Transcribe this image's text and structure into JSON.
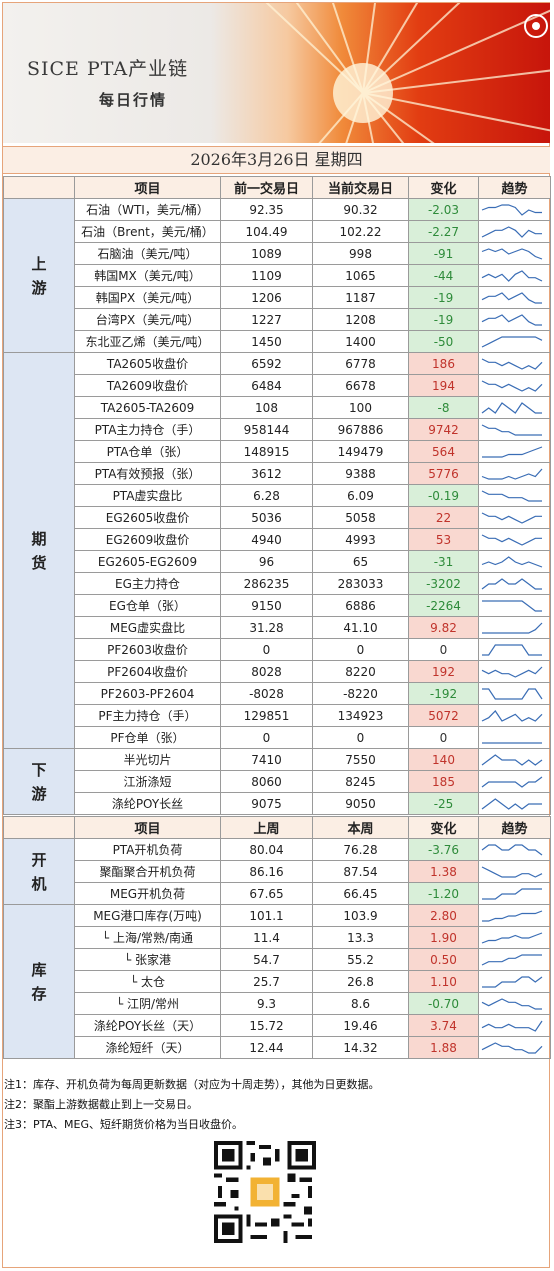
{
  "banner": {
    "title_line1": "SICE  PTA产业链",
    "title_line2": "每日行情"
  },
  "date": "2026年3月26日  星期四",
  "header1": {
    "item": "项目",
    "prev": "前一交易日",
    "curr": "当前交易日",
    "change": "变化",
    "trend": "趋势"
  },
  "header2": {
    "item": "项目",
    "prev": "上周",
    "curr": "本周",
    "change": "变化",
    "trend": "趋势"
  },
  "colors": {
    "up_bg": "#f9d8d0",
    "up_text": "#c0332b",
    "down_bg": "#d9efd9",
    "down_text": "#2e8b3a",
    "section_bg": "#dde6f3"
  },
  "sections": [
    {
      "name": "上\n游",
      "rows": [
        {
          "item": "石油（WTI，美元/桶）",
          "prev": "92.35",
          "curr": "90.32",
          "change": "-2.03",
          "dir": "down",
          "trend": [
            4,
            5,
            5,
            6,
            6,
            5,
            2,
            4,
            3,
            3
          ]
        },
        {
          "item": "石油（Brent，美元/桶）",
          "prev": "104.49",
          "curr": "102.22",
          "change": "-2.27",
          "dir": "down",
          "trend": [
            3,
            4,
            5,
            5,
            6,
            5,
            3,
            5,
            4,
            4
          ]
        },
        {
          "item": "石脑油（美元/吨）",
          "prev": "1089",
          "curr": "998",
          "change": "-91",
          "dir": "down",
          "trend": [
            5,
            6,
            5,
            6,
            4,
            5,
            6,
            5,
            3,
            2
          ]
        },
        {
          "item": "韩国MX（美元/吨）",
          "prev": "1109",
          "curr": "1065",
          "change": "-44",
          "dir": "down",
          "trend": [
            4,
            5,
            4,
            5,
            3,
            5,
            6,
            4,
            4,
            3
          ]
        },
        {
          "item": "韩国PX（美元/吨）",
          "prev": "1206",
          "curr": "1187",
          "change": "-19",
          "dir": "down",
          "trend": [
            4,
            5,
            5,
            6,
            4,
            5,
            6,
            4,
            3,
            3
          ]
        },
        {
          "item": "台湾PX（美元/吨）",
          "prev": "1227",
          "curr": "1208",
          "change": "-19",
          "dir": "down",
          "trend": [
            4,
            5,
            5,
            6,
            4,
            5,
            6,
            4,
            3,
            3
          ]
        },
        {
          "item": "东北亚乙烯（美元/吨）",
          "prev": "1450",
          "curr": "1400",
          "change": "-50",
          "dir": "down",
          "trend": [
            2,
            3,
            4,
            5,
            5,
            5,
            5,
            5,
            5,
            4
          ]
        }
      ]
    },
    {
      "name": "期\n货",
      "rows": [
        {
          "item": "TA2605收盘价",
          "prev": "6592",
          "curr": "6778",
          "change": "186",
          "dir": "up",
          "trend": [
            5,
            4,
            4,
            3,
            4,
            3,
            2,
            3,
            2,
            4
          ]
        },
        {
          "item": "TA2609收盘价",
          "prev": "6484",
          "curr": "6678",
          "change": "194",
          "dir": "up",
          "trend": [
            5,
            4,
            4,
            3,
            4,
            3,
            2,
            3,
            2,
            4
          ]
        },
        {
          "item": "TA2605-TA2609",
          "prev": "108",
          "curr": "100",
          "change": "-8",
          "dir": "down",
          "trend": [
            3,
            4,
            3,
            5,
            4,
            3,
            5,
            4,
            3,
            3
          ]
        },
        {
          "item": "PTA主力持仓（手）",
          "prev": "958144",
          "curr": "967886",
          "change": "9742",
          "dir": "up",
          "trend": [
            6,
            5,
            5,
            4,
            4,
            3,
            3,
            3,
            3,
            3
          ]
        },
        {
          "item": "PTA仓单（张）",
          "prev": "148915",
          "curr": "149479",
          "change": "564",
          "dir": "up",
          "trend": [
            2,
            2,
            2,
            2,
            3,
            3,
            3,
            4,
            5,
            6
          ]
        },
        {
          "item": "PTA有效预报（张）",
          "prev": "3612",
          "curr": "9388",
          "change": "5776",
          "dir": "up",
          "trend": [
            3,
            2,
            2,
            2,
            3,
            2,
            3,
            4,
            3,
            6
          ]
        },
        {
          "item": "PTA虚实盘比",
          "prev": "6.28",
          "curr": "6.09",
          "change": "-0.19",
          "dir": "down",
          "trend": [
            6,
            5,
            5,
            5,
            4,
            4,
            4,
            3,
            3,
            3
          ]
        },
        {
          "item": "EG2605收盘价",
          "prev": "5036",
          "curr": "5058",
          "change": "22",
          "dir": "up",
          "trend": [
            5,
            4,
            4,
            3,
            4,
            3,
            2,
            3,
            4,
            4
          ]
        },
        {
          "item": "EG2609收盘价",
          "prev": "4940",
          "curr": "4993",
          "change": "53",
          "dir": "up",
          "trend": [
            5,
            4,
            4,
            3,
            4,
            3,
            2,
            3,
            4,
            4
          ]
        },
        {
          "item": "EG2605-EG2609",
          "prev": "96",
          "curr": "65",
          "change": "-31",
          "dir": "down",
          "trend": [
            3,
            4,
            3,
            4,
            6,
            4,
            3,
            4,
            3,
            2
          ]
        },
        {
          "item": "EG主力持仓",
          "prev": "286235",
          "curr": "283033",
          "change": "-3202",
          "dir": "down",
          "trend": [
            3,
            4,
            4,
            5,
            4,
            4,
            5,
            4,
            3,
            3
          ]
        },
        {
          "item": "EG仓单（张）",
          "prev": "9150",
          "curr": "6886",
          "change": "-2264",
          "dir": "down",
          "trend": [
            5,
            5,
            5,
            5,
            5,
            5,
            5,
            4,
            3,
            3
          ]
        },
        {
          "item": "MEG虚实盘比",
          "prev": "31.28",
          "curr": "41.10",
          "change": "9.82",
          "dir": "up",
          "trend": [
            3,
            3,
            3,
            3,
            3,
            3,
            3,
            3,
            4,
            6
          ]
        },
        {
          "item": "PF2603收盘价",
          "prev": "0",
          "curr": "0",
          "change": "0",
          "dir": "flat",
          "trend": [
            2,
            2,
            6,
            6,
            6,
            6,
            6,
            2,
            2,
            2
          ]
        },
        {
          "item": "PF2604收盘价",
          "prev": "8028",
          "curr": "8220",
          "change": "192",
          "dir": "up",
          "trend": [
            4,
            3,
            4,
            3,
            3,
            2,
            3,
            4,
            3,
            5
          ]
        },
        {
          "item": "PF2603-PF2604",
          "prev": "-8028",
          "curr": "-8220",
          "change": "-192",
          "dir": "down",
          "trend": [
            5,
            5,
            3,
            3,
            3,
            3,
            3,
            5,
            5,
            3
          ]
        },
        {
          "item": "PF主力持仓（手）",
          "prev": "129851",
          "curr": "134923",
          "change": "5072",
          "dir": "up",
          "trend": [
            3,
            4,
            6,
            3,
            4,
            5,
            3,
            4,
            3,
            5
          ]
        },
        {
          "item": "PF仓单（张）",
          "prev": "0",
          "curr": "0",
          "change": "0",
          "dir": "flat",
          "trend": [
            4,
            4,
            4,
            4,
            4,
            4,
            4,
            4,
            4,
            4
          ]
        }
      ]
    },
    {
      "name": "下\n游",
      "rows": [
        {
          "item": "半光切片",
          "prev": "7410",
          "curr": "7550",
          "change": "140",
          "dir": "up",
          "trend": [
            3,
            4,
            5,
            4,
            4,
            4,
            3,
            4,
            3,
            4
          ]
        },
        {
          "item": "江浙涤短",
          "prev": "8060",
          "curr": "8245",
          "change": "185",
          "dir": "up",
          "trend": [
            3,
            4,
            4,
            4,
            4,
            4,
            3,
            4,
            4,
            5
          ]
        },
        {
          "item": "涤纶POY长丝",
          "prev": "9075",
          "curr": "9050",
          "change": "-25",
          "dir": "down",
          "trend": [
            3,
            4,
            5,
            4,
            3,
            4,
            3,
            4,
            4,
            4
          ]
        }
      ]
    }
  ],
  "weekly_sections": [
    {
      "name": "开\n机",
      "rows": [
        {
          "item": "PTA开机负荷",
          "prev": "80.04",
          "curr": "76.28",
          "change": "-3.76",
          "dir": "down",
          "trend": [
            4,
            5,
            5,
            4,
            4,
            5,
            5,
            4,
            4,
            3
          ]
        },
        {
          "item": "聚酯聚合开机负荷",
          "prev": "86.16",
          "curr": "87.54",
          "change": "1.38",
          "dir": "up",
          "trend": [
            6,
            5,
            4,
            3,
            3,
            3,
            4,
            4,
            3,
            4
          ]
        },
        {
          "item": "MEG开机负荷",
          "prev": "67.65",
          "curr": "66.45",
          "change": "-1.20",
          "dir": "down",
          "trend": [
            3,
            3,
            3,
            4,
            4,
            4,
            5,
            5,
            5,
            5
          ]
        }
      ]
    },
    {
      "name": "库\n存",
      "rows": [
        {
          "item": "MEG港口库存(万吨)",
          "prev": "101.1",
          "curr": "103.9",
          "change": "2.80",
          "dir": "up",
          "trend": [
            2,
            2,
            3,
            3,
            4,
            4,
            5,
            5,
            5,
            6
          ]
        },
        {
          "item": "└ 上海/常熟/南通",
          "prev": "11.4",
          "curr": "13.3",
          "change": "1.90",
          "dir": "up",
          "trend": [
            2,
            3,
            3,
            4,
            4,
            5,
            4,
            4,
            5,
            6
          ]
        },
        {
          "item": "└ 张家港",
          "prev": "54.7",
          "curr": "55.2",
          "change": "0.50",
          "dir": "up",
          "trend": [
            2,
            3,
            3,
            3,
            4,
            4,
            5,
            5,
            5,
            5
          ]
        },
        {
          "item": "└ 太仓",
          "prev": "25.7",
          "curr": "26.8",
          "change": "1.10",
          "dir": "up",
          "trend": [
            3,
            3,
            3,
            4,
            4,
            4,
            5,
            5,
            4,
            5
          ]
        },
        {
          "item": "└ 江阴/常州",
          "prev": "9.3",
          "curr": "8.6",
          "change": "-0.70",
          "dir": "down",
          "trend": [
            4,
            3,
            4,
            5,
            4,
            4,
            3,
            3,
            2,
            2
          ]
        },
        {
          "item": "涤纶POY长丝（天）",
          "prev": "15.72",
          "curr": "19.46",
          "change": "3.74",
          "dir": "up",
          "trend": [
            3,
            4,
            3,
            3,
            4,
            3,
            3,
            3,
            2,
            5
          ]
        },
        {
          "item": "涤纶短纤（天）",
          "prev": "12.44",
          "curr": "14.32",
          "change": "1.88",
          "dir": "up",
          "trend": [
            3,
            4,
            5,
            4,
            4,
            3,
            3,
            2,
            2,
            4
          ]
        }
      ]
    }
  ],
  "notes": [
    "注1：库存、开机负荷为每周更新数据（对应为十周走势），其他为日更数据。",
    "注2：聚酯上游数据截止到上一交易日。",
    "注3：PTA、MEG、短纤期货价格为当日收盘价。"
  ]
}
